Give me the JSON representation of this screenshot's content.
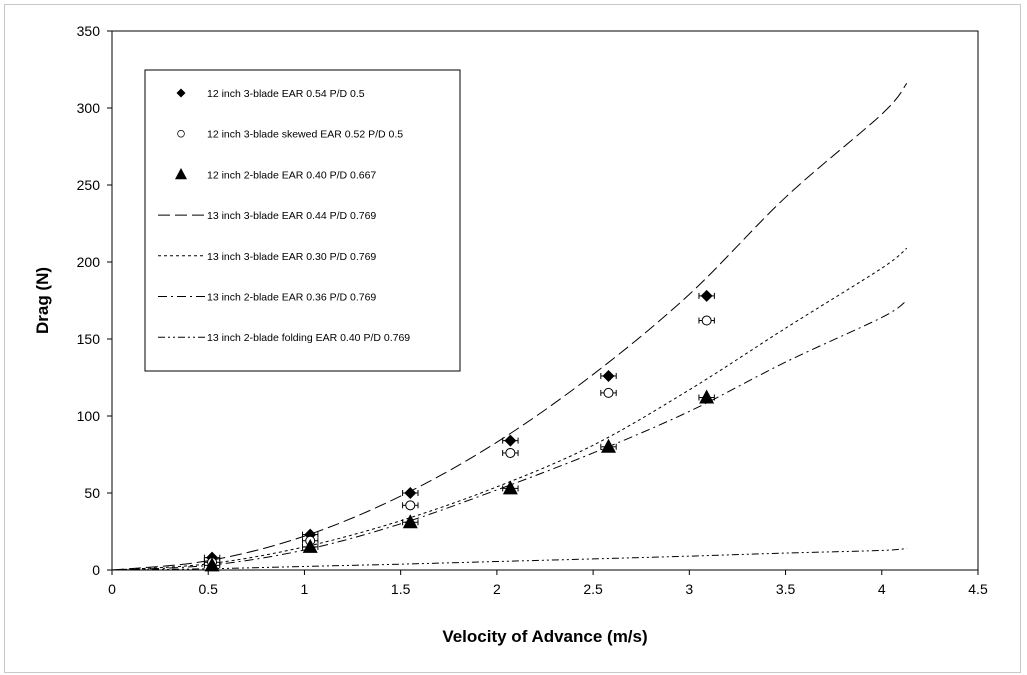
{
  "chart_data": {
    "type": "scatter",
    "title": "",
    "xlabel": "Velocity of Advance (m/s)",
    "ylabel": "Drag (N)",
    "xlim": [
      0,
      4.5
    ],
    "ylim": [
      0,
      350
    ],
    "xticks": [
      "0",
      "0.5",
      "1",
      "1.5",
      "2",
      "2.5",
      "3",
      "3.5",
      "4",
      "4.5"
    ],
    "yticks": [
      "0",
      "50",
      "100",
      "150",
      "200",
      "250",
      "300",
      "350"
    ],
    "grid": false,
    "legend_position": "top-left",
    "series": [
      {
        "name": "12 inch 3-blade EAR 0.54 P/D 0.5",
        "kind": "points",
        "marker": "diamond-filled",
        "x": [
          0.52,
          1.03,
          1.55,
          2.07,
          2.58,
          3.09
        ],
        "y": [
          8,
          23,
          50,
          84,
          126,
          178
        ],
        "xerr": 0.04,
        "yerr": 3
      },
      {
        "name": "12 inch 3-blade skewed EAR 0.52 P/D 0.5",
        "kind": "points",
        "marker": "circle-open",
        "x": [
          0.52,
          1.03,
          1.55,
          2.07,
          2.58,
          3.09
        ],
        "y": [
          5,
          19,
          42,
          76,
          115,
          162
        ],
        "xerr": 0.04,
        "yerr": 3
      },
      {
        "name": "12 inch 2-blade EAR 0.40 P/D 0.667",
        "kind": "points",
        "marker": "triangle-filled",
        "x": [
          0.52,
          1.03,
          1.55,
          2.07,
          2.58,
          3.09
        ],
        "y": [
          3,
          15,
          31,
          53,
          80,
          112
        ],
        "xerr": 0.04,
        "yerr": 3
      },
      {
        "name": "13 inch 3-blade EAR 0.44 P/D 0.769",
        "kind": "line",
        "dash": "12,5",
        "x": [
          0,
          0.5,
          1,
          1.5,
          2,
          2.5,
          3,
          3.5,
          4,
          4.13
        ],
        "y": [
          0,
          6,
          22,
          48,
          83,
          127,
          179,
          242,
          296,
          316
        ]
      },
      {
        "name": "13 inch 3-blade EAR 0.30 P/D 0.769",
        "kind": "line",
        "dash": "3,3",
        "x": [
          0,
          0.5,
          1,
          1.5,
          2,
          2.5,
          3,
          3.5,
          4,
          4.13
        ],
        "y": [
          0,
          4,
          15,
          32,
          54,
          81,
          117,
          157,
          196,
          209
        ]
      },
      {
        "name": "13 inch 2-blade EAR 0.36 P/D 0.769",
        "kind": "line",
        "dash": "9,4,2,4",
        "x": [
          0,
          0.5,
          1,
          1.5,
          2,
          2.5,
          3,
          3.5,
          4,
          4.13
        ],
        "y": [
          0,
          3,
          13,
          30,
          52,
          76,
          103,
          135,
          164,
          175
        ]
      },
      {
        "name": "13 inch 2-blade folding EAR 0.40 P/D 0.769",
        "kind": "line",
        "dash": "7,3,2,3,2,3",
        "x": [
          0,
          0.5,
          1,
          1.5,
          2,
          2.5,
          3,
          3.5,
          4,
          4.13
        ],
        "y": [
          0,
          0.8,
          2.3,
          3.8,
          5.5,
          7.2,
          9,
          11,
          12.7,
          14
        ]
      }
    ]
  }
}
